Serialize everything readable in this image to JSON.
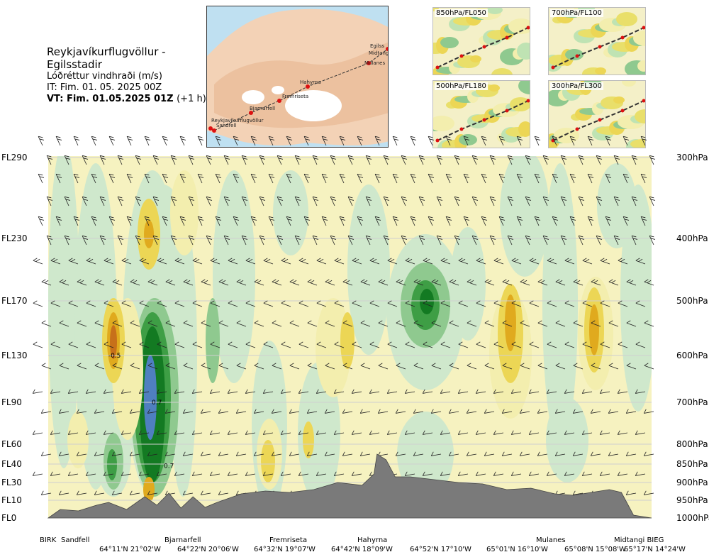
{
  "header": {
    "route": "Reykjavíkurflugvöllur - Egilsstadir",
    "parameter": "Lóðréttur vindhraði (m/s)",
    "issue_time": "IT: Fim. 01. 05. 2025 00Z",
    "valid_time_bold": "VT: Fim. 01.05.2025 01Z",
    "valid_time_offset": "(+1 h)"
  },
  "route_map": {
    "places": [
      "Reykjavíkurflugvöllur",
      "Sandfell",
      "Bjarnarfell",
      "Fremriseta",
      "Hahyrna",
      "Mulanes",
      "Midtangi",
      "Egilss"
    ]
  },
  "panels": [
    {
      "id": "p850",
      "label": "850hPa/FL050"
    },
    {
      "id": "p700",
      "label": "700hPa/FL100"
    },
    {
      "id": "p500",
      "label": "500hPa/FL180"
    },
    {
      "id": "p300",
      "label": "300hPa/FL300"
    }
  ],
  "colors": {
    "strong_up": "#4f7fc0",
    "up_dark": "#137a22",
    "up_mid": "#3e9e45",
    "up_light": "#8fc98f",
    "up_faint": "#cfe8cc",
    "down_faint": "#f3eeae",
    "down_light": "#ecd655",
    "down_mid": "#e0aa1e",
    "down_dark": "#c7701a",
    "terrain": "#7a7a7a"
  },
  "chart_data": {
    "type": "heatmap",
    "title": "Lóðréttur vindhraði (m/s)",
    "x_waypoints": [
      {
        "name": "BIRK",
        "coord": ""
      },
      {
        "name": "Sandfell",
        "coord": "64°11'N 21°02'W"
      },
      {
        "name": "Bjarnarfell",
        "coord": "64°22'N 20°06'W"
      },
      {
        "name": "Fremriseta",
        "coord": "64°32'N 19°07'W"
      },
      {
        "name": "Hahyrna",
        "coord": "64°42'N 18°09'W"
      },
      {
        "name": "",
        "coord": "64°52'N 17°10'W"
      },
      {
        "name": "Mulanes",
        "coord": "65°01'N 16°10'W"
      },
      {
        "name": "",
        "coord": "65°08'N 15°08'W"
      },
      {
        "name": "Midtangi BIEG",
        "coord": "65°17'N 14°24'W"
      }
    ],
    "y_left_flight_levels": [
      "FL290",
      "FL230",
      "FL170",
      "FL130",
      "FL90",
      "FL60",
      "FL40",
      "FL30",
      "FL10",
      "FL0"
    ],
    "y_right_pressure": [
      "300hPa",
      "400hPa",
      "500hPa",
      "600hPa",
      "700hPa",
      "800hPa",
      "850hPa",
      "900hPa",
      "950hPa",
      "1000hPa"
    ],
    "pressure_values_hpa": [
      300,
      400,
      500,
      600,
      700,
      800,
      850,
      900,
      950,
      1000
    ],
    "contour_labels": [
      {
        "text": "-0.5",
        "value": -0.5,
        "along_track_fraction": 0.11,
        "pressure_hpa": 600
      },
      {
        "text": "0.7",
        "value": 0.7,
        "along_track_fraction": 0.18,
        "pressure_hpa": 700
      },
      {
        "text": "0.7",
        "value": 0.7,
        "along_track_fraction": 0.2,
        "pressure_hpa": 855
      }
    ],
    "value_range_m_s": [
      -0.5,
      0.7
    ],
    "grid": true,
    "legend": "none"
  }
}
